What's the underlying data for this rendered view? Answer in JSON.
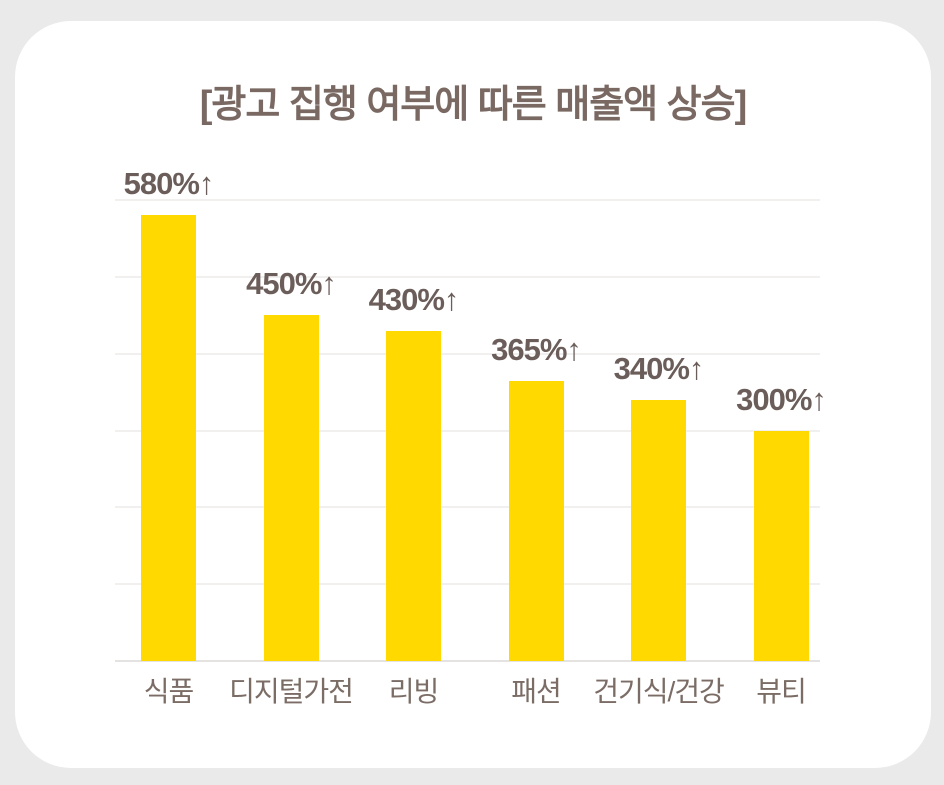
{
  "card": {
    "background": "#FFFFFF",
    "page_background": "#EAEAEA"
  },
  "chart_data": {
    "type": "bar",
    "title": "[광고 집행 여부에 따른 매출액 상승]",
    "categories": [
      "식품",
      "디지털가전",
      "리빙",
      "패션",
      "건기식/건강",
      "뷰티"
    ],
    "values": [
      580,
      450,
      430,
      365,
      340,
      300
    ],
    "bar_labels": [
      "580%↑",
      "450%↑",
      "430%↑",
      "365%↑",
      "340%↑",
      "300%↑"
    ],
    "xlabel": "",
    "ylabel": "",
    "ylim": [
      0,
      600
    ],
    "gridline_interval": 100,
    "grid": true,
    "legend": false,
    "bar_color": "#FFD900",
    "title_color": "#7A6963",
    "label_color": "#6B5E5A",
    "category_color": "#7B6D66",
    "gridline_color": "#F1F0EF",
    "baseline_color": "#E5E3E2"
  }
}
